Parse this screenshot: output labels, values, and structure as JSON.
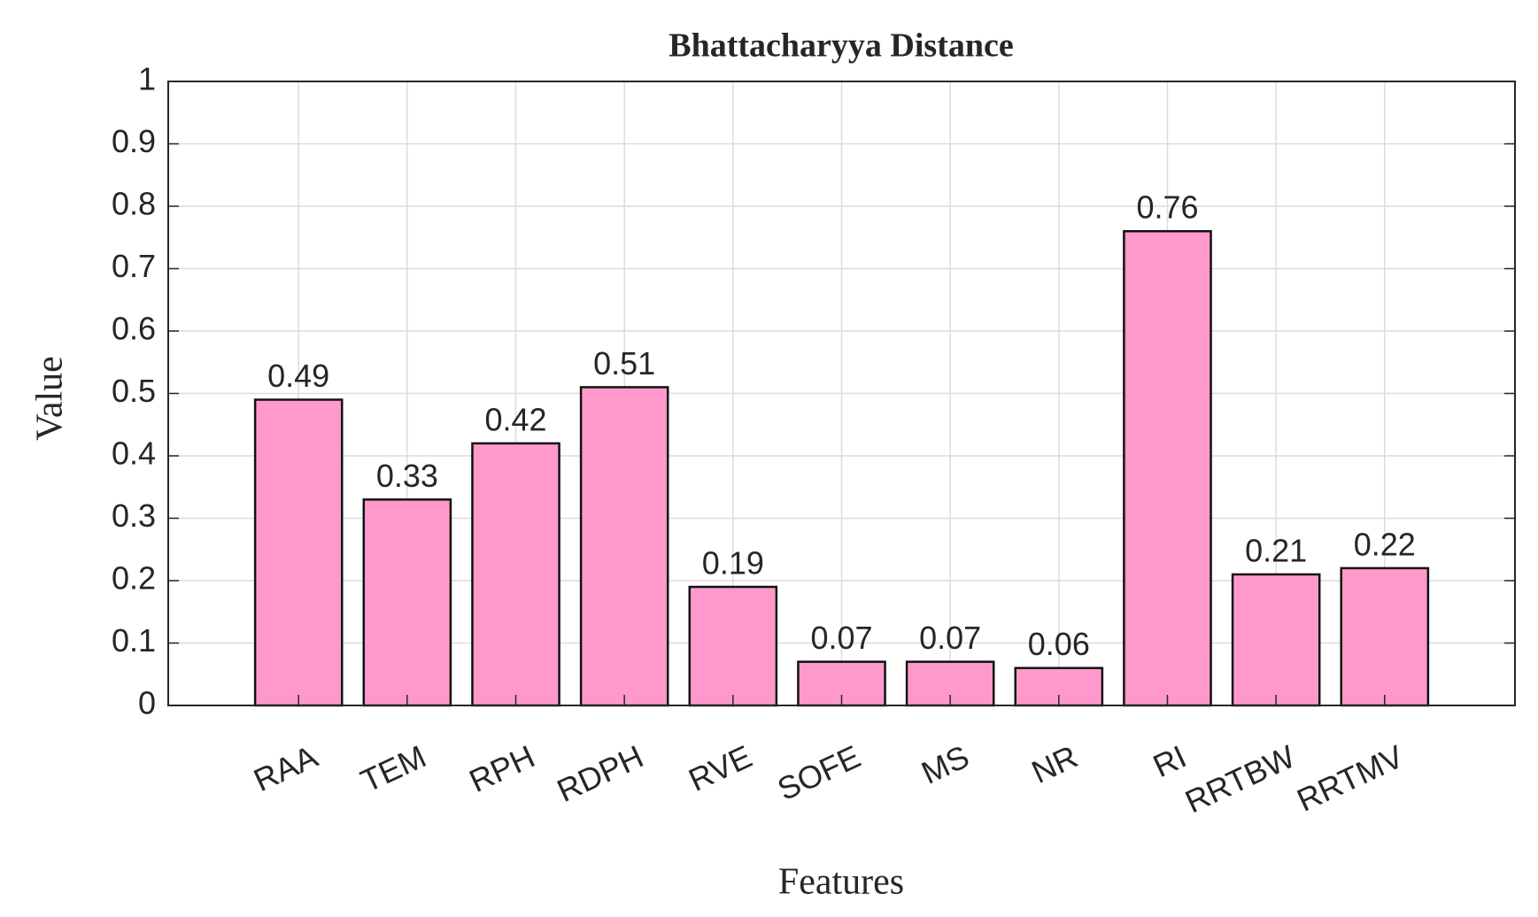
{
  "chart_data": {
    "type": "bar",
    "title": "Bhattacharyya Distance",
    "x_label": "Features",
    "y_label": "Value",
    "categories": [
      "RAA",
      "TEM",
      "RPH",
      "RDPH",
      "RVE",
      "SOFE",
      "MS",
      "NR",
      "RI",
      "RRTBW",
      "RRTMV"
    ],
    "values": [
      0.49,
      0.33,
      0.42,
      0.51,
      0.19,
      0.07,
      0.07,
      0.06,
      0.76,
      0.21,
      0.22
    ],
    "color": "#ff99cc",
    "ylim": [
      0,
      1
    ],
    "yticks": [
      0,
      0.1,
      0.2,
      0.3,
      0.4,
      0.5,
      0.6,
      0.7,
      0.8,
      0.9,
      1
    ],
    "grid": true
  }
}
